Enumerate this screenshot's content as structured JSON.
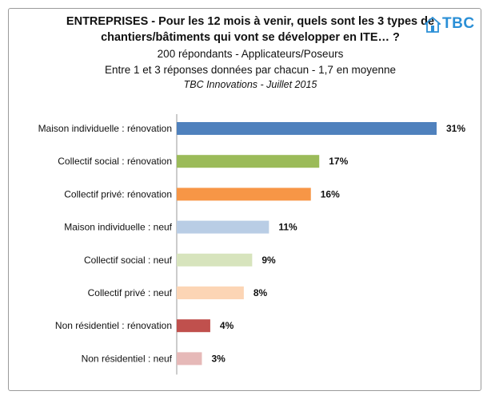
{
  "header": {
    "title_line1": "ENTREPRISES - Pour les 12 mois à venir, quels sont les 3 types de",
    "title_line2": "chantiers/bâtiments qui vont se développer en ITE… ?",
    "subtitle1": "200 répondants - Applicateurs/Poseurs",
    "subtitle2": "Entre 1 et 3 réponses données par chacun - 1,7 en moyenne",
    "subtitle3": "TBC Innovations - Juillet 2015",
    "logo_text": "TBC"
  },
  "chart_data": {
    "type": "bar",
    "orientation": "horizontal",
    "categories": [
      "Maison individuelle : rénovation",
      "Collectif social : rénovation",
      "Collectif privé: rénovation",
      "Maison individuelle : neuf",
      "Collectif social : neuf",
      "Collectif privé : neuf",
      "Non résidentiel : rénovation",
      "Non résidentiel : neuf"
    ],
    "values": [
      31,
      17,
      16,
      11,
      9,
      8,
      4,
      3
    ],
    "value_labels": [
      "31%",
      "17%",
      "16%",
      "11%",
      "9%",
      "8%",
      "4%",
      "3%"
    ],
    "colors": [
      "#4f81bd",
      "#9bbb59",
      "#f79646",
      "#b9cde5",
      "#d7e4bd",
      "#fcd5b5",
      "#c0504d",
      "#e6b9b8"
    ],
    "unit": "%",
    "xlim": [
      0,
      31
    ],
    "grid": false,
    "axis_line_color": "#9a9a9a"
  }
}
